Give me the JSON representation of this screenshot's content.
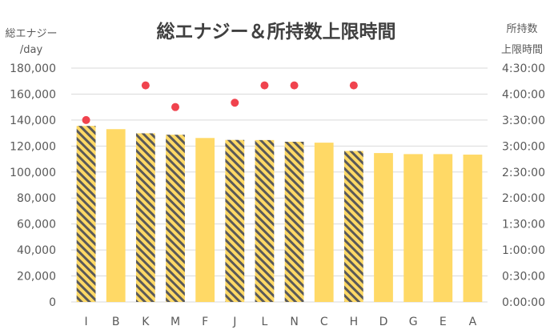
{
  "chart_data": {
    "type": "bar",
    "title": "総エナジー＆所持数上限時間",
    "left_axis": {
      "label_lines": [
        "総エナジー",
        "/day"
      ],
      "ylim": [
        0,
        180000
      ],
      "ticks": [
        "0",
        "20,000",
        "40,000",
        "60,000",
        "80,000",
        "100,000",
        "120,000",
        "140,000",
        "160,000",
        "180,000"
      ]
    },
    "right_axis": {
      "label_lines": [
        "所持数",
        "上限時間"
      ],
      "ylim_seconds": [
        0,
        16200
      ],
      "ticks": [
        "0:00:00",
        "0:30:00",
        "1:00:00",
        "1:30:00",
        "2:00:00",
        "2:30:00",
        "3:00:00",
        "3:30:00",
        "4:00:00",
        "4:30:00"
      ]
    },
    "categories": [
      "I",
      "B",
      "K",
      "M",
      "F",
      "J",
      "L",
      "N",
      "C",
      "H",
      "D",
      "G",
      "E",
      "A"
    ],
    "series": [
      {
        "type": "bar",
        "axis": "left",
        "values": [
          135500,
          133000,
          129800,
          128700,
          126200,
          124700,
          124600,
          123300,
          122600,
          116200,
          114600,
          113800,
          113800,
          113400
        ],
        "hatched": [
          true,
          false,
          true,
          true,
          false,
          true,
          true,
          true,
          false,
          true,
          false,
          false,
          false,
          false
        ]
      },
      {
        "type": "scatter",
        "axis": "right",
        "values": [
          "3:30:00",
          null,
          "4:10:00",
          "3:45:00",
          null,
          "3:50:00",
          "4:10:00",
          "4:10:00",
          null,
          "4:10:00",
          null,
          null,
          null,
          null
        ]
      }
    ],
    "colors": {
      "bar_fill": "#FFD966",
      "hatch_stripe": "#595959",
      "marker": "#F0434E",
      "grid": "#D9D9D9",
      "text": "#595959",
      "title": "#404040"
    },
    "grid": true,
    "legend": "none"
  }
}
